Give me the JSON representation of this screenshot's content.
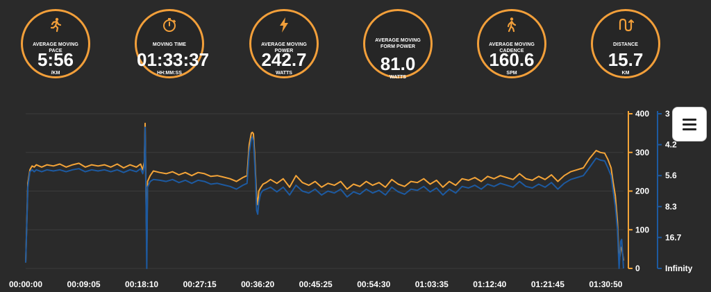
{
  "stats": [
    {
      "icon": "running-person-icon",
      "label": "AVERAGE MOVING PACE",
      "value": "5:56",
      "unit": "/KM"
    },
    {
      "icon": "stopwatch-icon",
      "label": "MOVING TIME",
      "value": "01:33:37",
      "unit": "HH:MM:SS"
    },
    {
      "icon": "lightning-bolt-icon",
      "label": "AVERAGE MOVING POWER",
      "value": "242.7",
      "unit": "WATTS"
    },
    {
      "icon": "",
      "label": "AVERAGE MOVING FORM POWER",
      "value": "81.0",
      "unit": "WATTS"
    },
    {
      "icon": "walking-person-icon",
      "label": "AVERAGE MOVING CADENCE",
      "value": "160.6",
      "unit": "SPM"
    },
    {
      "icon": "route-icon",
      "label": "DISTANCE",
      "value": "15.7",
      "unit": "KM"
    }
  ],
  "colors": {
    "accent": "#f29f3a",
    "power_line": "#f4a438",
    "pace_line": "#1d5aa1",
    "background": "#2a2a2a"
  },
  "chart_data": {
    "type": "line",
    "x_tick_labels": [
      "00:00:00",
      "00:09:05",
      "00:18:10",
      "00:27:15",
      "00:36:20",
      "00:45:25",
      "00:54:30",
      "01:03:35",
      "01:12:40",
      "01:21:45",
      "01:30:50"
    ],
    "x_tick_seconds": [
      0,
      545,
      1090,
      1635,
      2180,
      2725,
      3270,
      3815,
      4360,
      4905,
      5450
    ],
    "x_range_seconds": [
      0,
      5617
    ],
    "y_left": {
      "ticks": [
        "400",
        "300",
        "200",
        "100",
        "0"
      ],
      "range": [
        0,
        400
      ],
      "color": "#f4a438"
    },
    "y_right": {
      "ticks": [
        "3",
        "4.2",
        "5.6",
        "8.3",
        "16.7",
        "Infinity"
      ],
      "color": "#1d5aa1"
    },
    "legend": "none",
    "grid": true,
    "series": [
      {
        "color": "#f4a438",
        "axis": "left",
        "x_seconds": [
          0,
          20,
          40,
          60,
          80,
          100,
          150,
          200,
          260,
          320,
          380,
          440,
          500,
          560,
          620,
          680,
          740,
          800,
          860,
          920,
          980,
          1040,
          1080,
          1100,
          1115,
          1122,
          1130,
          1138,
          1145,
          1170,
          1200,
          1260,
          1320,
          1380,
          1440,
          1500,
          1560,
          1620,
          1680,
          1740,
          1800,
          1860,
          1920,
          1980,
          2040,
          2080,
          2100,
          2120,
          2130,
          2140,
          2150,
          2160,
          2170,
          2180,
          2190,
          2200,
          2210,
          2230,
          2260,
          2300,
          2360,
          2420,
          2480,
          2540,
          2600,
          2660,
          2720,
          2780,
          2840,
          2900,
          2960,
          3020,
          3080,
          3140,
          3200,
          3260,
          3320,
          3380,
          3440,
          3500,
          3560,
          3620,
          3680,
          3740,
          3800,
          3860,
          3920,
          3980,
          4040,
          4100,
          4160,
          4220,
          4280,
          4340,
          4400,
          4460,
          4520,
          4580,
          4640,
          4700,
          4760,
          4820,
          4880,
          4940,
          5000,
          5060,
          5120,
          5180,
          5240,
          5300,
          5360,
          5400,
          5440,
          5470,
          5500,
          5520,
          5540,
          5560,
          5575,
          5590,
          5600,
          5617
        ],
        "y_watts": [
          15,
          220,
          255,
          265,
          262,
          268,
          262,
          268,
          265,
          270,
          262,
          268,
          272,
          262,
          268,
          265,
          268,
          262,
          270,
          260,
          268,
          262,
          270,
          255,
          275,
          375,
          200,
          45,
          225,
          240,
          252,
          248,
          245,
          250,
          242,
          248,
          240,
          248,
          245,
          238,
          240,
          236,
          232,
          225,
          235,
          240,
          320,
          350,
          352,
          348,
          300,
          240,
          185,
          165,
          200,
          205,
          210,
          218,
          222,
          230,
          220,
          232,
          210,
          240,
          222,
          215,
          225,
          210,
          220,
          215,
          225,
          205,
          218,
          212,
          225,
          215,
          222,
          210,
          230,
          218,
          212,
          225,
          222,
          232,
          218,
          228,
          210,
          225,
          215,
          232,
          228,
          235,
          225,
          238,
          232,
          240,
          235,
          230,
          245,
          232,
          228,
          238,
          230,
          242,
          225,
          240,
          250,
          255,
          260,
          285,
          305,
          300,
          298,
          282,
          260,
          222,
          188,
          120,
          15,
          50,
          55,
          20
        ]
      },
      {
        "color": "#1d5aa1",
        "axis": "right",
        "x_seconds": [
          0,
          20,
          40,
          60,
          80,
          100,
          150,
          200,
          260,
          320,
          380,
          440,
          500,
          560,
          620,
          680,
          740,
          800,
          860,
          920,
          980,
          1040,
          1080,
          1100,
          1115,
          1122,
          1130,
          1138,
          1145,
          1170,
          1200,
          1260,
          1320,
          1380,
          1440,
          1500,
          1560,
          1620,
          1680,
          1740,
          1800,
          1860,
          1920,
          1980,
          2040,
          2080,
          2100,
          2120,
          2130,
          2140,
          2150,
          2160,
          2170,
          2180,
          2190,
          2200,
          2210,
          2230,
          2260,
          2300,
          2360,
          2420,
          2480,
          2540,
          2600,
          2660,
          2720,
          2780,
          2840,
          2900,
          2960,
          3020,
          3080,
          3140,
          3200,
          3260,
          3320,
          3380,
          3440,
          3500,
          3560,
          3620,
          3680,
          3740,
          3800,
          3860,
          3920,
          3980,
          4040,
          4100,
          4160,
          4220,
          4280,
          4340,
          4400,
          4460,
          4520,
          4580,
          4640,
          4700,
          4760,
          4820,
          4880,
          4940,
          5000,
          5060,
          5120,
          5180,
          5240,
          5300,
          5360,
          5400,
          5440,
          5470,
          5500,
          5520,
          5540,
          5560,
          5575,
          5590,
          5600,
          5617
        ],
        "y_axis_position": [
          15,
          210,
          250,
          255,
          250,
          255,
          250,
          255,
          252,
          255,
          250,
          255,
          258,
          250,
          255,
          252,
          255,
          250,
          255,
          248,
          255,
          250,
          258,
          245,
          265,
          365,
          195,
          0,
          210,
          225,
          230,
          228,
          225,
          230,
          222,
          228,
          220,
          228,
          225,
          218,
          220,
          216,
          212,
          205,
          215,
          220,
          300,
          335,
          340,
          330,
          280,
          225,
          150,
          140,
          170,
          185,
          195,
          202,
          205,
          210,
          198,
          210,
          190,
          215,
          200,
          195,
          205,
          190,
          200,
          195,
          205,
          185,
          198,
          192,
          205,
          195,
          202,
          190,
          210,
          198,
          192,
          205,
          202,
          212,
          198,
          208,
          190,
          205,
          195,
          212,
          208,
          215,
          205,
          218,
          212,
          220,
          215,
          210,
          225,
          212,
          208,
          218,
          210,
          222,
          205,
          220,
          230,
          235,
          240,
          262,
          285,
          280,
          278,
          260,
          240,
          200,
          160,
          100,
          0,
          70,
          75,
          0
        ]
      }
    ]
  }
}
